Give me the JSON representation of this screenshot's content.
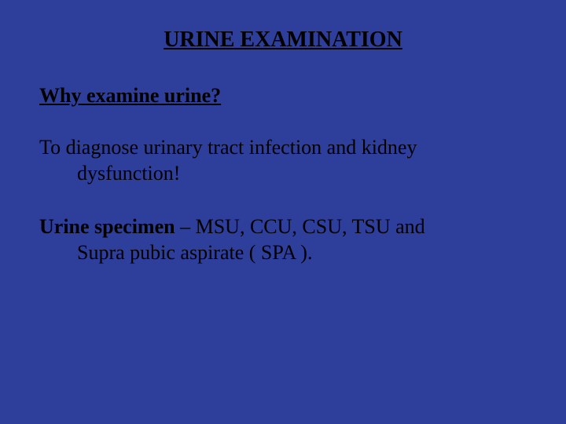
{
  "background_color": "#2e3e9b",
  "text_color": "#000000",
  "font_family": "Times New Roman",
  "title": {
    "text": "URINE EXAMINATION",
    "fontsize": 28,
    "bold": true,
    "underline": true,
    "align": "center"
  },
  "subheading": {
    "text": "Why examine urine?",
    "fontsize": 26,
    "bold": true,
    "underline": true
  },
  "body": {
    "line1": "To diagnose urinary tract infection and kidney",
    "line2": "dysfunction!",
    "fontsize": 26
  },
  "specimen": {
    "label": "Urine specimen",
    "rest_line1": " – MSU, CCU, CSU, TSU and",
    "rest_line2": "Supra pubic aspirate ( SPA ).",
    "fontsize": 26
  }
}
